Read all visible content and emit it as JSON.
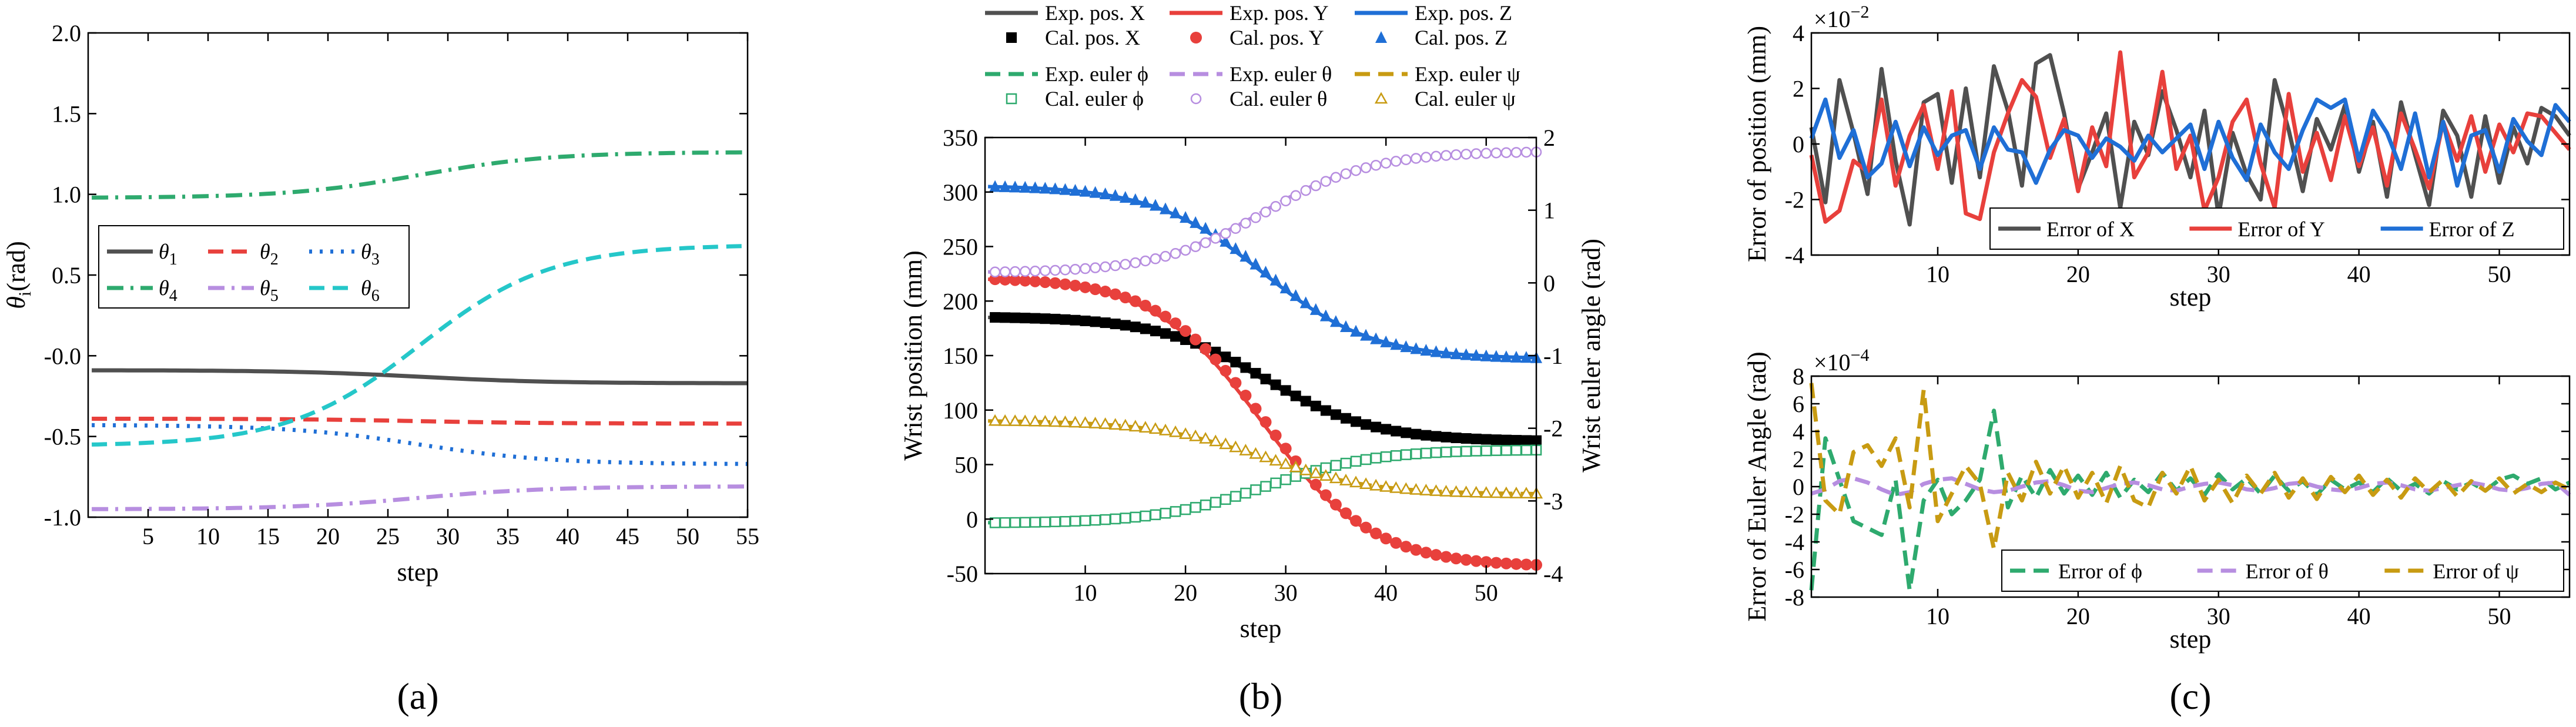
{
  "colors": {
    "dark": "#505050",
    "red": "#e8403c",
    "blue": "#1f6fd6",
    "green": "#2eaa6e",
    "purple": "#b78ee0",
    "cyan": "#25c7c9",
    "mustard": "#c89b12",
    "black": "#000000"
  },
  "chart_data": [
    {
      "id": "a",
      "type": "line",
      "panel_label": "(a)",
      "xlabel": "step",
      "ylabel_base": "θ",
      "ylabel_sub": "i",
      "ylabel_unit": "(rad)",
      "xlim": [
        0,
        55
      ],
      "ylim": [
        -1.0,
        2.0
      ],
      "xticks": [
        5,
        10,
        15,
        20,
        25,
        30,
        35,
        40,
        45,
        50,
        55
      ],
      "yticks": [
        -1.0,
        -0.5,
        -0.0,
        0.5,
        1.0,
        1.5,
        2.0
      ],
      "ytick_labels": [
        "-1.0",
        "-0.5",
        "-0.0",
        "0.5",
        "1.0",
        "1.5",
        "2.0"
      ],
      "legend_position": "center-left",
      "series": [
        {
          "base": "θ",
          "sub": "1",
          "color": "#505050",
          "style": "solid",
          "start": -0.09,
          "end": -0.17
        },
        {
          "base": "θ",
          "sub": "2",
          "color": "#e8403c",
          "style": "dash",
          "start": -0.39,
          "end": -0.42
        },
        {
          "base": "θ",
          "sub": "3",
          "color": "#1f6fd6",
          "style": "dot",
          "start": -0.43,
          "end": -0.67
        },
        {
          "base": "θ",
          "sub": "4",
          "color": "#2eaa6e",
          "style": "dashdot",
          "start": 0.98,
          "end": 1.26
        },
        {
          "base": "θ",
          "sub": "5",
          "color": "#b78ee0",
          "style": "dashdot",
          "start": -0.95,
          "end": -0.81
        },
        {
          "base": "θ",
          "sub": "6",
          "color": "#25c7c9",
          "style": "dash",
          "start": -0.55,
          "end": 0.68
        }
      ]
    },
    {
      "id": "b",
      "type": "line",
      "panel_label": "(b)",
      "xlabel": "step",
      "ylabel": "Wrist position (mm)",
      "ylabel_right": "Wrist euler angle (rad)",
      "xlim": [
        0,
        55
      ],
      "ylim": [
        -50,
        350
      ],
      "ylim_right": [
        -4,
        2
      ],
      "xticks": [
        10,
        20,
        30,
        40,
        50
      ],
      "yticks": [
        -50,
        0,
        50,
        100,
        150,
        200,
        250,
        300,
        350
      ],
      "yticks_right": [
        -4,
        -3,
        -2,
        -1,
        0,
        1,
        2
      ],
      "legend_position": "top",
      "series": [
        {
          "name": "Exp. pos. X",
          "axis": "left",
          "color": "#505050",
          "style": "solid",
          "start": 185,
          "end": 72
        },
        {
          "name": "Exp. pos. Y",
          "axis": "left",
          "color": "#e8403c",
          "style": "solid",
          "start": 220,
          "end": -42
        },
        {
          "name": "Exp. pos. Z",
          "axis": "left",
          "color": "#1f6fd6",
          "style": "solid",
          "start": 305,
          "end": 148
        },
        {
          "name": "Cal. pos. X",
          "axis": "left",
          "color": "#000000",
          "marker": "square",
          "start": 185,
          "end": 72
        },
        {
          "name": "Cal. pos. Y",
          "axis": "left",
          "color": "#e8403c",
          "marker": "circle",
          "start": 220,
          "end": -42
        },
        {
          "name": "Cal. pos. Z",
          "axis": "left",
          "color": "#1f6fd6",
          "marker": "triangle",
          "start": 305,
          "end": 148
        },
        {
          "name": "Exp. euler ϕ",
          "axis": "right",
          "color": "#2eaa6e",
          "style": "dash",
          "start": -3.3,
          "end": -2.3
        },
        {
          "name": "Exp. euler θ",
          "axis": "right",
          "color": "#b78ee0",
          "style": "dash",
          "start": 0.15,
          "end": 1.8
        },
        {
          "name": "Exp. euler ψ",
          "axis": "right",
          "color": "#c89b12",
          "style": "dash",
          "start": -1.9,
          "end": -2.9
        },
        {
          "name": "Cal. euler ϕ",
          "axis": "right",
          "color": "#2eaa6e",
          "marker": "open-square",
          "start": -3.3,
          "end": -2.3
        },
        {
          "name": "Cal. euler θ",
          "axis": "right",
          "color": "#b78ee0",
          "marker": "open-circle",
          "start": 0.15,
          "end": 1.8
        },
        {
          "name": "Cal. euler ψ",
          "axis": "right",
          "color": "#c89b12",
          "marker": "open-triangle",
          "start": -1.9,
          "end": -2.9
        }
      ]
    },
    {
      "id": "c1",
      "type": "line",
      "panel_label": "(c)",
      "xlabel": "step",
      "ylabel": "Error of position (mm)",
      "scale_base": "×10",
      "scale_exp": "−2",
      "xlim": [
        1,
        55
      ],
      "ylim": [
        -4,
        4
      ],
      "xticks": [
        10,
        20,
        30,
        40,
        50
      ],
      "yticks": [
        -4,
        -2,
        0,
        2,
        4
      ],
      "legend_position": "bottom-right",
      "series": [
        {
          "name": "Error of X",
          "color": "#505050",
          "style": "solid",
          "values": [
            0.6,
            -2.1,
            2.3,
            0.4,
            -1.8,
            2.7,
            -0.6,
            -2.9,
            1.5,
            1.8,
            -1.4,
            2.0,
            -1.2,
            2.8,
            1.2,
            -1.5,
            2.9,
            3.2,
            1.1,
            -1.6,
            -0.3,
            1.1,
            -2.3,
            0.8,
            -0.4,
            1.9,
            0.5,
            -1.2,
            1.2,
            -2.6,
            0.4,
            -1.1,
            -2.0,
            2.3,
            0.5,
            -1.7,
            0.9,
            -0.2,
            1.4,
            -1.0,
            0.8,
            -1.9,
            1.5,
            -0.4,
            -2.2,
            1.2,
            0.3,
            -1.9,
            1.0,
            -1.4,
            0.6,
            -0.7,
            1.3,
            1.0,
            0.3
          ]
        },
        {
          "name": "Error of Y",
          "color": "#e8403c",
          "style": "solid",
          "values": [
            -0.4,
            -2.8,
            -2.4,
            -0.6,
            -1.0,
            1.6,
            -1.5,
            0.3,
            1.4,
            -0.9,
            1.9,
            -2.5,
            -2.7,
            -0.3,
            1.1,
            2.3,
            1.7,
            -0.5,
            0.9,
            -1.7,
            0.6,
            -0.8,
            3.3,
            -1.2,
            -0.3,
            2.6,
            -0.9,
            0.3,
            -2.4,
            -1.2,
            0.8,
            1.6,
            -0.7,
            -2.3,
            1.8,
            -1.0,
            0.4,
            -1.3,
            1.0,
            -0.8,
            0.6,
            -1.5,
            1.1,
            -0.2,
            -1.6,
            0.8,
            -0.6,
            1.0,
            -1.0,
            0.7,
            -0.3,
            1.1,
            1.0,
            0.4,
            -0.2
          ]
        },
        {
          "name": "Error of Z",
          "color": "#1f6fd6",
          "style": "solid",
          "values": [
            0.2,
            1.6,
            -0.5,
            0.5,
            -1.2,
            -0.7,
            0.8,
            -0.8,
            0.6,
            -0.4,
            0.3,
            0.5,
            -0.9,
            0.6,
            -0.2,
            -0.3,
            -1.4,
            -0.2,
            0.5,
            0.3,
            -0.5,
            0.2,
            -0.1,
            -0.6,
            0.3,
            -0.3,
            0.2,
            0.7,
            -0.9,
            0.8,
            -0.5,
            -1.3,
            0.7,
            -0.3,
            -0.9,
            0.5,
            1.6,
            1.3,
            1.6,
            -0.6,
            1.2,
            0.4,
            -0.9,
            1.1,
            -1.2,
            0.8,
            -1.5,
            0.3,
            0.5,
            -1.0,
            0.9,
            0.1,
            -0.4,
            1.4,
            0.8
          ]
        }
      ]
    },
    {
      "id": "c2",
      "type": "line",
      "xlabel": "step",
      "ylabel": "Error of Euler Angle (rad)",
      "scale_base": "×10",
      "scale_exp": "−4",
      "xlim": [
        1,
        55
      ],
      "ylim": [
        -8,
        8
      ],
      "xticks": [
        10,
        20,
        30,
        40,
        50
      ],
      "yticks": [
        -8,
        -6,
        -4,
        -2,
        0,
        2,
        4,
        6,
        8
      ],
      "legend_position": "bottom-right",
      "series": [
        {
          "name": "Error of ϕ",
          "color": "#2eaa6e",
          "style": "dash",
          "values": [
            -7.5,
            3.5,
            0.5,
            -2.5,
            -3.0,
            -3.5,
            0.5,
            -7.5,
            -1.0,
            0.5,
            -2.0,
            -1.0,
            0.5,
            5.5,
            -1.5,
            0.8,
            -0.8,
            1.2,
            -0.5,
            0.8,
            -0.6,
            1.0,
            -0.8,
            0.5,
            -0.4,
            1.0,
            -0.3,
            0.6,
            -0.6,
            0.9,
            -0.2,
            0.6,
            -0.5,
            0.8,
            -0.3,
            0.4,
            -0.6,
            0.5,
            -0.2,
            0.3,
            -0.4,
            0.6,
            -0.3,
            0.2,
            -0.5,
            0.4,
            -0.2,
            0.3,
            -0.3,
            0.5,
            0.8,
            0.2,
            0.6,
            -0.2,
            0.3
          ]
        },
        {
          "name": "Error of θ",
          "color": "#b78ee0",
          "style": "dash",
          "values": [
            -0.5,
            -0.2,
            0.4,
            0.6,
            0.3,
            -0.2,
            -0.6,
            -0.4,
            0.2,
            0.5,
            0.6,
            0.2,
            -0.2,
            -0.4,
            -0.3,
            0.0,
            0.3,
            0.4,
            0.1,
            -0.3,
            -0.4,
            -0.1,
            0.2,
            0.3,
            0.1,
            -0.2,
            -0.3,
            0.0,
            0.2,
            0.3,
            0.1,
            -0.2,
            -0.3,
            -0.1,
            0.2,
            0.3,
            0.0,
            -0.2,
            -0.3,
            -0.1,
            0.2,
            0.3,
            0.1,
            -0.2,
            -0.3,
            -0.1,
            0.1,
            0.3,
            0.1,
            -0.2,
            -0.3,
            -0.1,
            0.2,
            0.3,
            -0.6
          ]
        },
        {
          "name": "Error of ψ",
          "color": "#c89b12",
          "style": "dash",
          "values": [
            7.5,
            -1.0,
            -2.0,
            2.5,
            3.0,
            1.5,
            3.5,
            -1.5,
            7.0,
            -2.5,
            -0.5,
            1.5,
            0.2,
            -4.5,
            1.0,
            -1.0,
            1.8,
            -0.5,
            1.5,
            -0.8,
            1.0,
            -1.2,
            1.5,
            -1.0,
            -1.5,
            1.0,
            -0.5,
            1.5,
            -1.0,
            0.5,
            -1.2,
            0.8,
            -0.5,
            1.0,
            -0.8,
            0.6,
            -0.9,
            0.7,
            -0.4,
            0.8,
            -0.6,
            0.5,
            -0.8,
            0.6,
            -0.4,
            0.5,
            -0.7,
            0.4,
            -0.3,
            0.6,
            -0.5,
            0.2,
            -0.4,
            0.3,
            -0.2
          ]
        }
      ]
    }
  ]
}
